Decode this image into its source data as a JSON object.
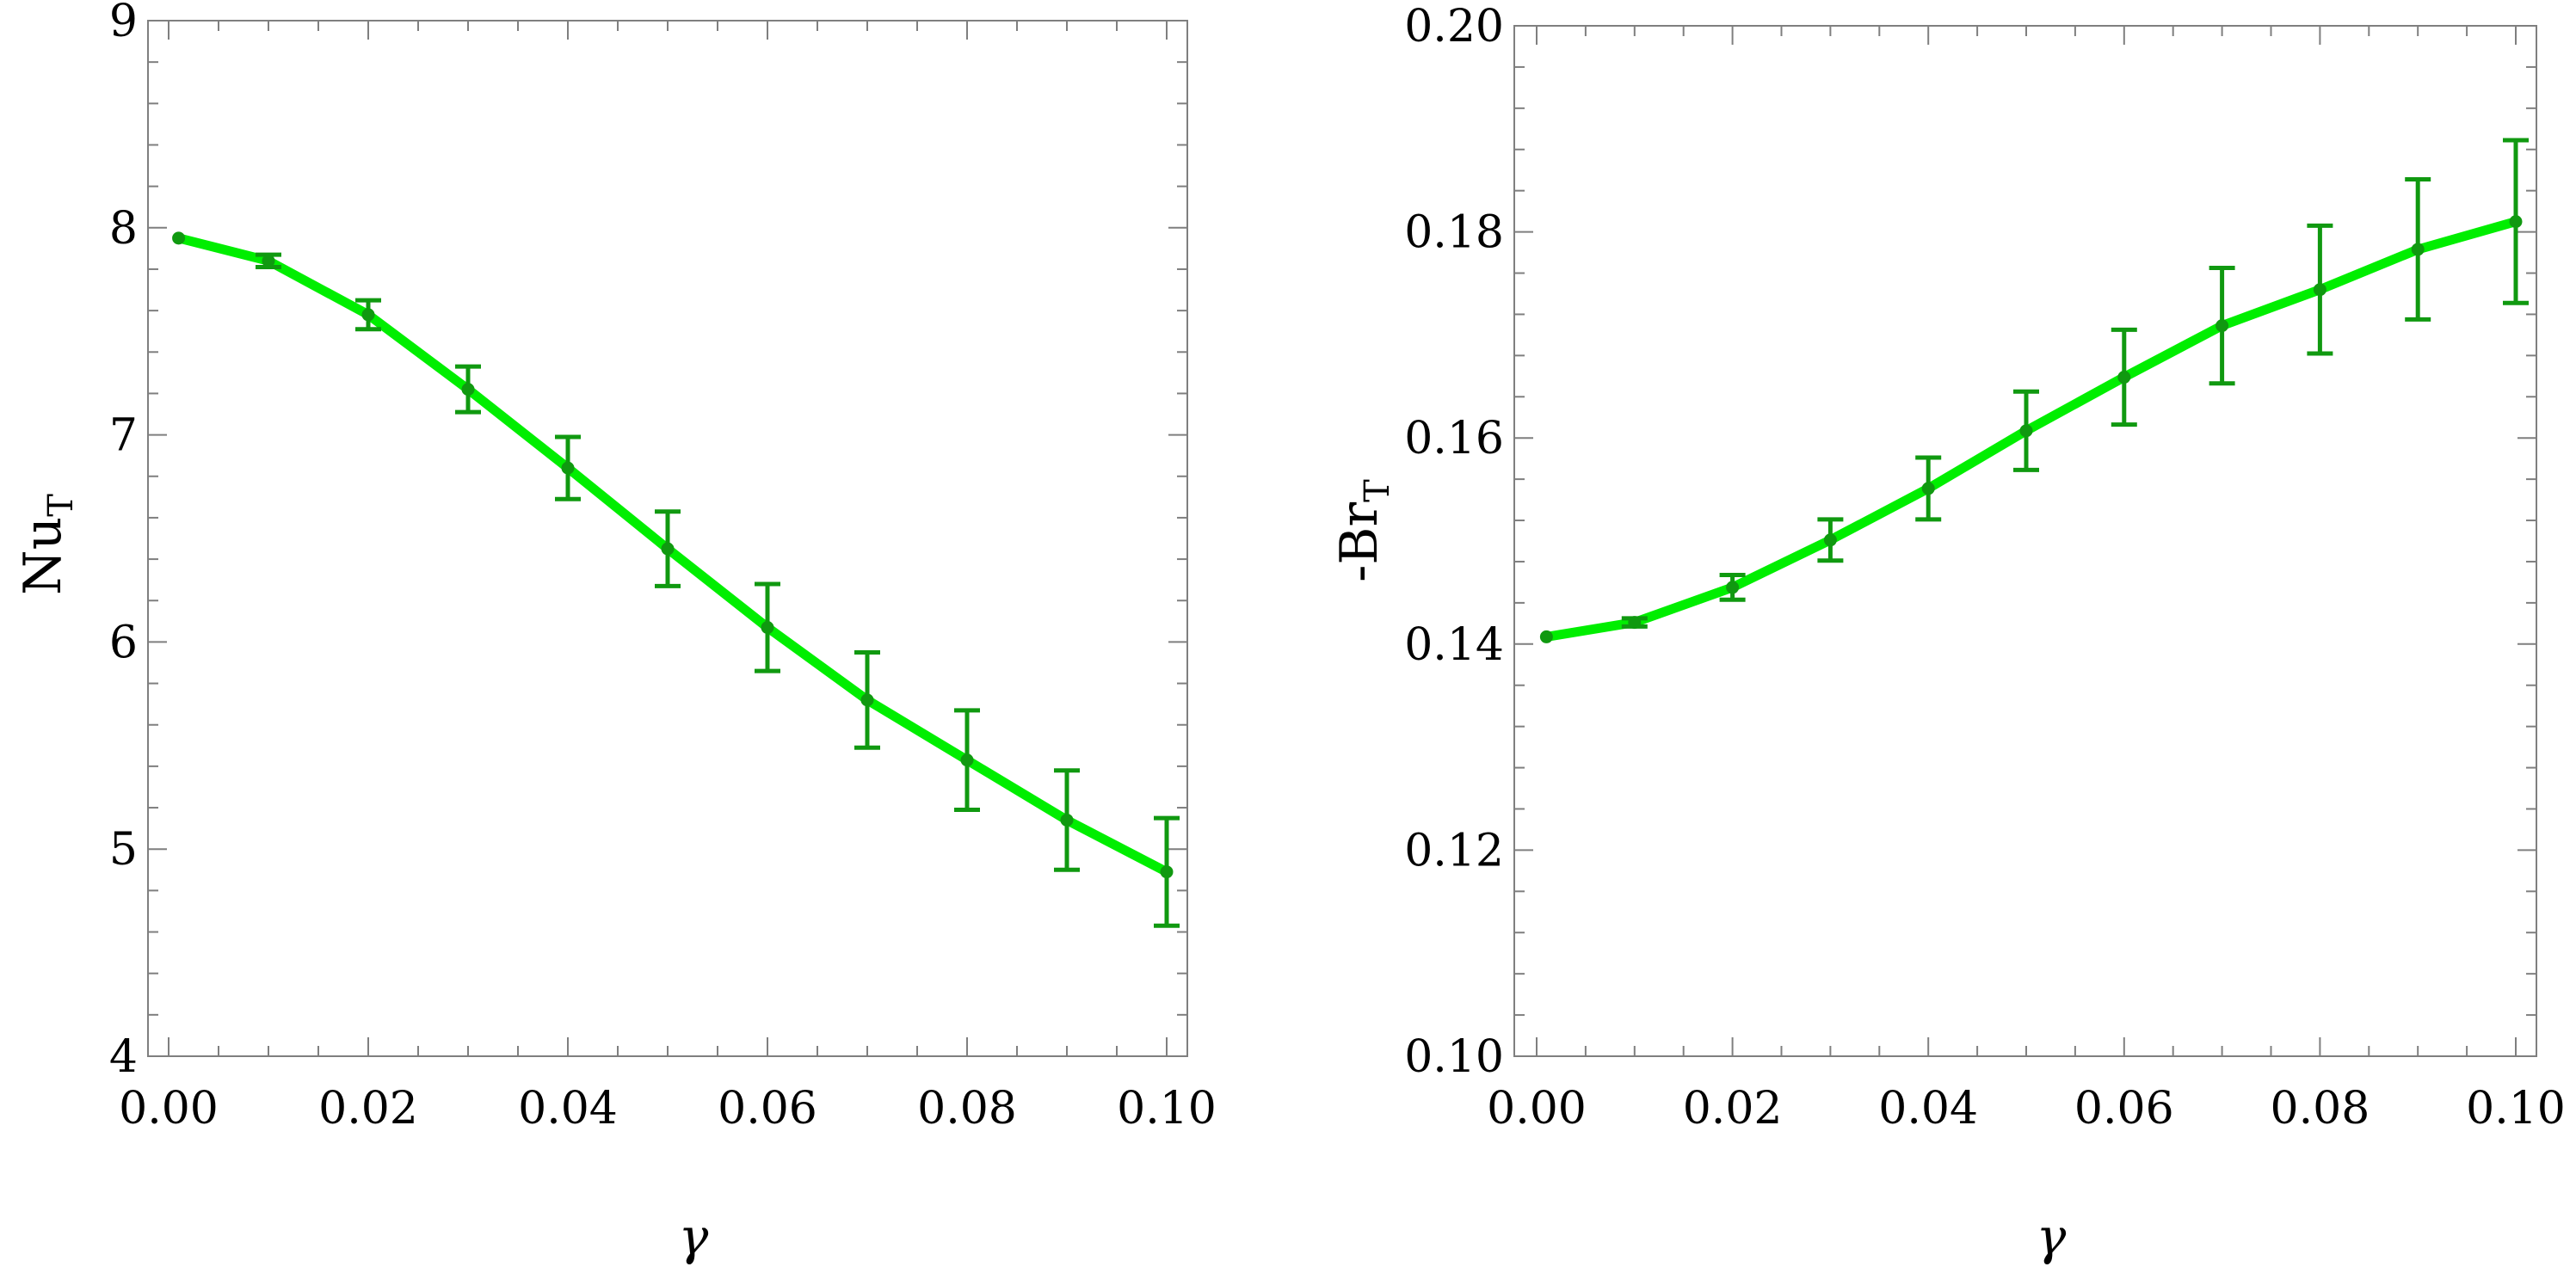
{
  "colors": {
    "line": "#00ee00",
    "marker": "#109910",
    "errorbar": "#109910",
    "frame": "#7f7f7f"
  },
  "chart_data": [
    {
      "type": "line",
      "title": "",
      "xlabel": "γ",
      "ylabel_main": "Nu",
      "ylabel_sub": "T",
      "xlim": [
        0.0,
        0.1
      ],
      "ylim": [
        4,
        9
      ],
      "x_ticks": [
        "0.00",
        "0.02",
        "0.04",
        "0.06",
        "0.08",
        "0.10"
      ],
      "y_ticks": [
        "4",
        "5",
        "6",
        "7",
        "8",
        "9"
      ],
      "grid": false,
      "series": [
        {
          "name": "Nu_T",
          "x": [
            0.001,
            0.01,
            0.02,
            0.03,
            0.04,
            0.05,
            0.06,
            0.07,
            0.08,
            0.09,
            0.1
          ],
          "y": [
            7.95,
            7.84,
            7.58,
            7.22,
            6.84,
            6.45,
            6.07,
            5.72,
            5.43,
            5.14,
            4.89
          ],
          "err": [
            0.0,
            0.03,
            0.07,
            0.11,
            0.15,
            0.18,
            0.21,
            0.23,
            0.24,
            0.24,
            0.26
          ]
        }
      ]
    },
    {
      "type": "line",
      "title": "",
      "xlabel": "γ",
      "ylabel_main": "-Br",
      "ylabel_sub": "T",
      "xlim": [
        0.0,
        0.1
      ],
      "ylim": [
        0.1,
        0.2
      ],
      "x_ticks": [
        "0.00",
        "0.02",
        "0.04",
        "0.06",
        "0.08",
        "0.10"
      ],
      "y_ticks": [
        "0.10",
        "0.12",
        "0.14",
        "0.16",
        "0.18",
        "0.20"
      ],
      "grid": false,
      "series": [
        {
          "name": "-Br_T",
          "x": [
            0.001,
            0.01,
            0.02,
            0.03,
            0.04,
            0.05,
            0.06,
            0.07,
            0.08,
            0.09,
            0.1
          ],
          "y": [
            0.1407,
            0.1421,
            0.1455,
            0.1501,
            0.1551,
            0.1607,
            0.1659,
            0.1709,
            0.1744,
            0.1783,
            0.181
          ],
          "err": [
            0.0,
            0.0004,
            0.0012,
            0.002,
            0.003,
            0.0038,
            0.0046,
            0.0056,
            0.0062,
            0.0068,
            0.0079
          ]
        }
      ]
    }
  ]
}
